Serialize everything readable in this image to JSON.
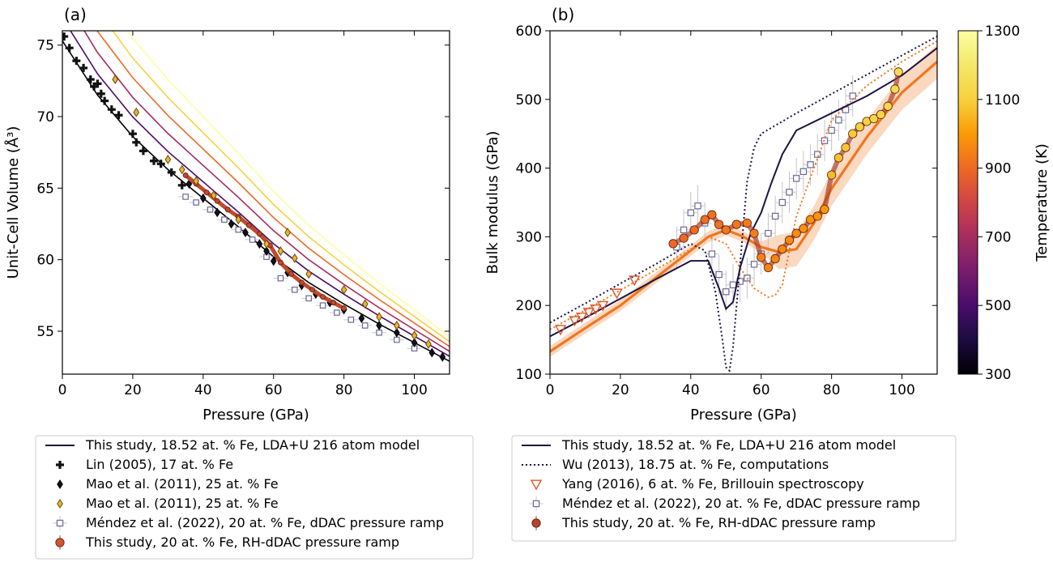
{
  "chart_data": [
    {
      "panel": "(a)",
      "type": "scatter",
      "xlabel": "Pressure (GPa)",
      "ylabel": "Unit-Cell Volume (Å³)",
      "xlim": [
        0,
        110
      ],
      "ylim": [
        52,
        76
      ],
      "xticks": [
        0,
        20,
        40,
        60,
        80,
        100
      ],
      "yticks": [
        55,
        60,
        65,
        70,
        75
      ],
      "legend": {
        "location": "below",
        "entries": [
          {
            "label": "This study, 18.52 at. % Fe, LDA+U 216 atom model",
            "marker": "line",
            "color": "#1b1442"
          },
          {
            "label": "Lin (2005), 17 at. % Fe",
            "marker": "plus",
            "color": "#111111"
          },
          {
            "label": "Mao et al. (2011), 25 at. % Fe",
            "marker": "diamond",
            "color": "#111122"
          },
          {
            "label": "Mao et al. (2011), 25 at. % Fe",
            "marker": "diamond",
            "color": "#e8b43a"
          },
          {
            "label": "Méndez et al. (2022), 20 at. % Fe, dDAC pressure ramp",
            "marker": "square-open",
            "color": "#6a6a9a"
          },
          {
            "label": "This study, 20 at. % Fe, RH-dDAC pressure ramp",
            "marker": "circle",
            "color": "#d2552e"
          }
        ]
      },
      "series": [
        {
          "name": "This study, 18.52 at. % Fe, LDA+U 216 atom model",
          "kind": "isotherms",
          "temperatures": [
            300,
            500,
            700,
            900,
            1100,
            1300
          ],
          "x": [
            0,
            10,
            20,
            30,
            40,
            50,
            60,
            70,
            80,
            90,
            100,
            110
          ],
          "y": [
            75.3,
            71.5,
            68.6,
            66.3,
            64.3,
            62.3,
            60.2,
            58.4,
            56.9,
            55.5,
            54.2,
            52.9
          ]
        },
        {
          "name": "Lin (2005), 17 at. % Fe",
          "x": [
            0.5,
            2,
            4,
            6,
            8,
            9,
            10,
            11,
            12,
            14,
            16,
            20,
            21,
            23,
            26,
            28,
            31,
            34
          ],
          "y": [
            75.6,
            74.8,
            73.9,
            73.4,
            72.6,
            72.1,
            72.3,
            71.6,
            71.1,
            70.5,
            70.1,
            68.8,
            68.2,
            67.6,
            66.9,
            66.7,
            66.1,
            65.2
          ]
        },
        {
          "name": "Mao et al. (2011), 25 at. % Fe",
          "marker_color": "#111122",
          "x": [
            36,
            40,
            44,
            48,
            52,
            56,
            58,
            60,
            64,
            68,
            72,
            76,
            80,
            85,
            90,
            95,
            100,
            105,
            108
          ],
          "y": [
            65.3,
            64.3,
            63.3,
            62.5,
            61.9,
            61.1,
            60.6,
            59.9,
            59.1,
            58.2,
            57.6,
            57.0,
            56.5,
            55.9,
            55.4,
            54.9,
            54.2,
            53.5,
            53.2
          ]
        },
        {
          "name": "Mao et al. (2011), 25 at. % Fe",
          "marker_color": "#e8b43a",
          "x": [
            15,
            21,
            30,
            34,
            38,
            43,
            50,
            58,
            62,
            64,
            66,
            70,
            80,
            86,
            90,
            95,
            100,
            104
          ],
          "y": [
            72.6,
            70.3,
            67.0,
            66.3,
            65.5,
            64.5,
            62.8,
            61.1,
            60.6,
            61.9,
            60.1,
            59.0,
            57.9,
            56.9,
            56.0,
            55.4,
            54.7,
            54.1
          ]
        },
        {
          "name": "Méndez et al. (2022), 20 at. % Fe, dDAC pressure ramp",
          "x": [
            35,
            38,
            42,
            46,
            50,
            54,
            58,
            62,
            66,
            70,
            74,
            78,
            82,
            86,
            90,
            95,
            100
          ],
          "y": [
            64.4,
            64.0,
            63.5,
            62.8,
            62.1,
            61.4,
            60.2,
            58.7,
            57.9,
            57.3,
            56.8,
            56.3,
            55.8,
            55.4,
            54.9,
            54.4,
            53.8
          ]
        },
        {
          "name": "This study, 20 at. % Fe, RH-dDAC pressure ramp",
          "x": [
            35,
            38,
            41,
            44,
            47,
            50,
            53,
            56,
            59,
            62,
            65,
            68,
            71,
            74,
            77,
            80
          ],
          "y": [
            65.9,
            65.3,
            64.7,
            64.1,
            63.5,
            63.0,
            62.4,
            61.8,
            61.0,
            59.8,
            59.0,
            58.4,
            57.9,
            57.4,
            57.0,
            56.6
          ]
        }
      ]
    },
    {
      "panel": "(b)",
      "type": "scatter",
      "xlabel": "Pressure (GPa)",
      "ylabel": "Bulk modulus (GPa)",
      "xlim": [
        0,
        110
      ],
      "ylim": [
        100,
        600
      ],
      "xticks": [
        0,
        20,
        40,
        60,
        80,
        100
      ],
      "yticks": [
        100,
        200,
        300,
        400,
        500,
        600
      ],
      "colorbar": {
        "label": "Temperature (K)",
        "range": [
          300,
          1300
        ],
        "ticks": [
          300,
          500,
          700,
          900,
          1100,
          1300
        ],
        "colormap": "inferno"
      },
      "legend": {
        "location": "below",
        "entries": [
          {
            "label": "This study, 18.52 at. % Fe, LDA+U 216 atom model",
            "marker": "line",
            "color": "#1b1442"
          },
          {
            "label": "Wu (2013), 18.75 at. % Fe, computations",
            "marker": "dotted-line",
            "color": "#1b1442"
          },
          {
            "label": "Yang (2016), 6 at. % Fe, Brillouin spectroscopy",
            "marker": "triangle-down-open",
            "color": "#e0552a"
          },
          {
            "label": "Méndez et al. (2022), 20 at. % Fe, dDAC pressure ramp",
            "marker": "square-open",
            "color": "#6a6a9a"
          },
          {
            "label": "This study, 20 at. % Fe, RH-dDAC pressure ramp",
            "marker": "circle",
            "color": "#b4442a"
          }
        ]
      },
      "series": [
        {
          "name": "This study, 18.52 at. % Fe, LDA+U 216 atom model",
          "x": [
            0,
            10,
            20,
            30,
            40,
            45,
            48,
            50,
            52,
            54,
            57,
            60,
            63,
            66,
            70,
            80,
            90,
            100,
            110
          ],
          "y": [
            155,
            182,
            210,
            238,
            265,
            265,
            225,
            195,
            205,
            255,
            305,
            335,
            380,
            420,
            455,
            480,
            505,
            535,
            575
          ]
        },
        {
          "name": "Wu (2013), 18.75 at. % Fe, computations",
          "x": [
            0,
            10,
            20,
            30,
            40,
            44,
            47,
            49,
            50,
            51,
            52,
            54,
            56,
            58,
            60,
            65,
            70,
            80,
            90,
            100,
            110
          ],
          "y": [
            175,
            203,
            232,
            260,
            290,
            280,
            220,
            150,
            110,
            105,
            140,
            260,
            380,
            430,
            450,
            465,
            480,
            508,
            536,
            564,
            592
          ]
        },
        {
          "name": "Yang (2016), 6 at. % Fe, Brillouin spectroscopy",
          "x": [
            3,
            7,
            9,
            11,
            13,
            15,
            19,
            24
          ],
          "y": [
            165,
            178,
            183,
            190,
            195,
            200,
            218,
            237
          ]
        },
        {
          "name": "Méndez et al. (2022), 20 at. % Fe, dDAC pressure ramp",
          "x": [
            36,
            38,
            40,
            42,
            44,
            46,
            48,
            50,
            52,
            54,
            56,
            58,
            60,
            62,
            64,
            66,
            68,
            70,
            72,
            74,
            76,
            78,
            80,
            82,
            84,
            86
          ],
          "y": [
            285,
            310,
            335,
            345,
            320,
            275,
            245,
            220,
            230,
            235,
            240,
            260,
            275,
            305,
            330,
            350,
            365,
            385,
            395,
            405,
            420,
            440,
            455,
            470,
            485,
            505
          ]
        },
        {
          "name": "This study, 20 at. % Fe, RH-dDAC pressure ramp",
          "x": [
            35,
            38,
            41,
            44,
            46,
            48,
            50,
            53,
            56,
            58,
            60,
            62,
            64,
            66,
            68,
            70,
            72,
            74,
            76,
            78,
            80,
            82,
            84,
            86,
            88,
            90,
            92,
            94,
            96,
            98,
            99
          ],
          "y": [
            290,
            298,
            310,
            325,
            332,
            318,
            310,
            318,
            320,
            305,
            270,
            255,
            268,
            282,
            295,
            305,
            312,
            325,
            330,
            340,
            390,
            415,
            430,
            450,
            460,
            468,
            472,
            478,
            490,
            515,
            540
          ],
          "temperature": [
            900,
            900,
            905,
            910,
            915,
            920,
            925,
            930,
            935,
            940,
            945,
            950,
            955,
            960,
            965,
            970,
            975,
            980,
            985,
            990,
            1060,
            1070,
            1080,
            1090,
            1100,
            1110,
            1115,
            1120,
            1130,
            1140,
            1150
          ]
        },
        {
          "name": "orange model curve",
          "x": [
            0,
            10,
            20,
            30,
            40,
            45,
            50,
            55,
            60,
            65,
            70,
            75,
            80,
            90,
            100,
            110
          ],
          "y": [
            133,
            167,
            200,
            240,
            280,
            300,
            310,
            300,
            285,
            278,
            282,
            320,
            370,
            445,
            510,
            555
          ]
        },
        {
          "name": "orange dotted model curve",
          "x": [
            0,
            10,
            20,
            30,
            40,
            45,
            50,
            54,
            58,
            62,
            64,
            66,
            70,
            80,
            90,
            100,
            110
          ],
          "y": [
            165,
            193,
            222,
            252,
            282,
            300,
            290,
            255,
            225,
            212,
            215,
            230,
            330,
            470,
            520,
            555,
            585
          ]
        }
      ]
    }
  ],
  "panel_labels": {
    "a": "(a)",
    "b": "(b)"
  }
}
